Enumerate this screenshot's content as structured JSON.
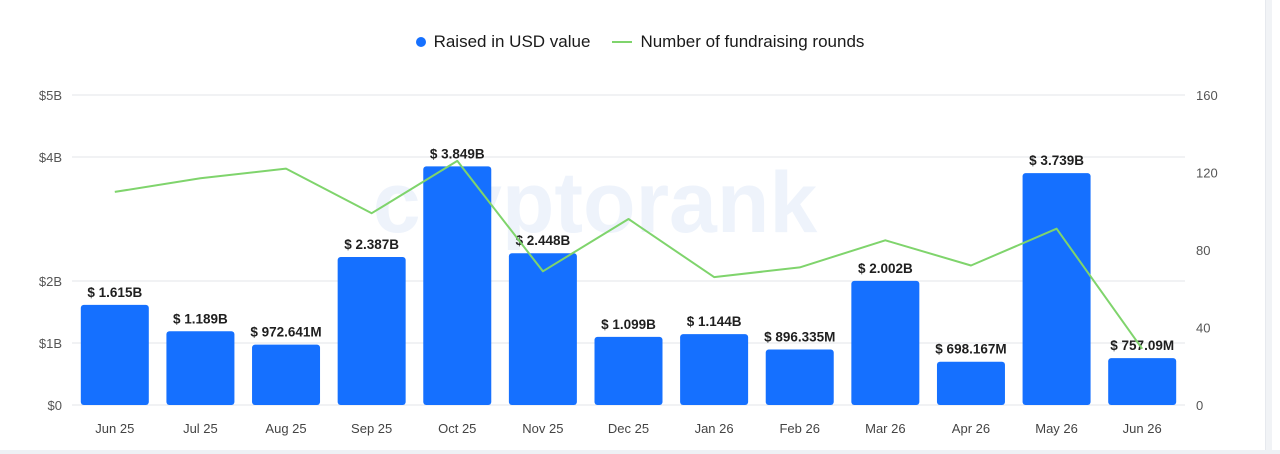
{
  "legend": {
    "bar_label": "Raised in USD value",
    "line_label": "Number of fundraising rounds"
  },
  "colors": {
    "bar": "#1570ff",
    "line": "#7fd46c",
    "grid": "#e3e6ea",
    "text": "#333333"
  },
  "watermark": "cryptorank",
  "chart_data": {
    "type": "bar",
    "categories": [
      "Jun 25",
      "Jul 25",
      "Aug 25",
      "Sep 25",
      "Oct 25",
      "Nov 25",
      "Dec 25",
      "Jan 26",
      "Feb 26",
      "Mar 26",
      "Apr 26",
      "May 26",
      "Jun 26"
    ],
    "series": [
      {
        "name": "Raised in USD value",
        "type": "bar",
        "axis": "left",
        "values": [
          1.615,
          1.189,
          0.973,
          2.387,
          3.849,
          2.448,
          1.099,
          1.144,
          0.896,
          2.002,
          0.698,
          3.739,
          0.757
        ],
        "labels": [
          "$ 1.615B",
          "$ 1.189B",
          "$ 972.641M",
          "$ 2.387B",
          "$ 3.849B",
          "$ 2.448B",
          "$ 1.099B",
          "$ 1.144B",
          "$ 896.335M",
          "$ 2.002B",
          "$ 698.167M",
          "$ 3.739B",
          "$ 757.09M"
        ]
      },
      {
        "name": "Number of fundraising rounds",
        "type": "line",
        "axis": "right",
        "values": [
          110,
          117,
          122,
          99,
          126,
          69,
          96,
          66,
          71,
          85,
          72,
          91,
          29
        ]
      }
    ],
    "y_left": {
      "ticks": [
        0,
        1,
        2,
        4,
        5
      ],
      "tick_labels": [
        "$0",
        "$1B",
        "$2B",
        "$4B",
        "$5B"
      ],
      "unit": "B USD"
    },
    "y_right": {
      "ticks": [
        0,
        40,
        80,
        120,
        160
      ],
      "tick_labels": [
        "0",
        "40",
        "80",
        "120",
        "160"
      ],
      "range": [
        0,
        160
      ]
    },
    "grid": true,
    "legend_position": "top-center"
  }
}
